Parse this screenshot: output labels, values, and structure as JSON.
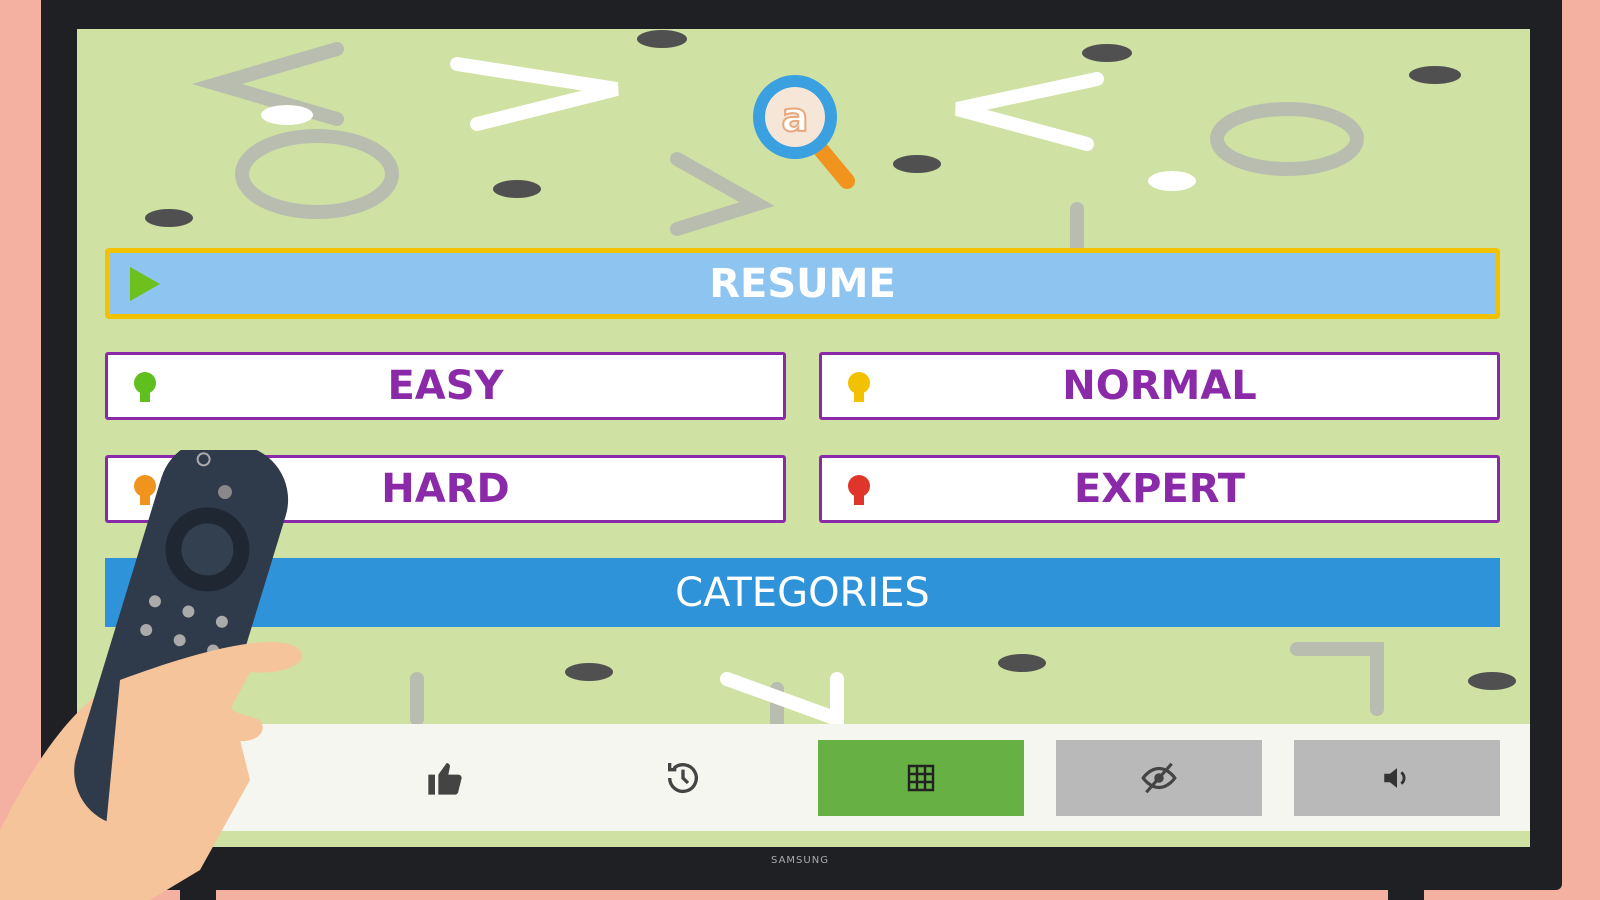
{
  "brand": "SAMSUNG",
  "menu": {
    "resume": "RESUME",
    "difficulties": [
      {
        "label": "EASY",
        "bulb_color": "#5fbf1f"
      },
      {
        "label": "NORMAL",
        "bulb_color": "#f2c200"
      },
      {
        "label": "HARD",
        "bulb_color": "#f0941e"
      },
      {
        "label": "EXPERT",
        "bulb_color": "#e0352b"
      }
    ],
    "categories": "CATEGORIES"
  },
  "toolbar": [
    {
      "icon": "thumbs-up-icon"
    },
    {
      "icon": "history-icon"
    },
    {
      "icon": "grid-icon",
      "active": true
    },
    {
      "icon": "eye-off-icon",
      "active": false
    },
    {
      "icon": "volume-icon",
      "active": false
    }
  ],
  "colors": {
    "accent_purple": "#8a2aa8",
    "resume_border": "#f2c200",
    "categories_blue": "#2f93d9",
    "active_green": "#66b044",
    "inactive_gray": "#b9b9b9"
  }
}
